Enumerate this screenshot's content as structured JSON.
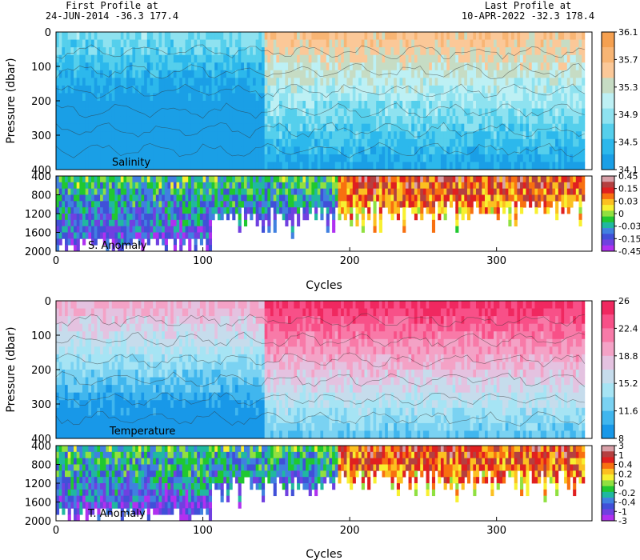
{
  "header": {
    "first_label": "First Profile at",
    "first_info": "24-JUN-2014    -36.3  177.4",
    "last_label": "Last Profile at",
    "last_info": "10-APR-2022    -32.3  178.4"
  },
  "chart_data": [
    {
      "type": "heatmap",
      "title": "",
      "panel_label": "Salinity",
      "xlabel": "",
      "ylabel": "Pressure (dbar)",
      "xlim": [
        0,
        365
      ],
      "ylim": [
        400,
        0
      ],
      "yticks": [
        "0",
        "100",
        "200",
        "300",
        "400"
      ],
      "colorbar": {
        "labels": [
          "36.1",
          "35.7",
          "35.3",
          "34.9",
          "34.5",
          "34.1"
        ],
        "colors": [
          "#f5a050",
          "#f8b574",
          "#fbc898",
          "#c6dcc4",
          "#bdf0f4",
          "#8ee2f0",
          "#55cfec",
          "#2cb8ec",
          "#1a9fe6"
        ]
      },
      "value_range": [
        34.1,
        36.1
      ]
    },
    {
      "type": "heatmap",
      "title": "",
      "panel_label": "S. Anomaly",
      "xlabel": "Cycles",
      "ylabel": "",
      "xlim": [
        0,
        365
      ],
      "ylim": [
        2000,
        400
      ],
      "yticks": [
        "400",
        "800",
        "1200",
        "1600",
        "2000"
      ],
      "xticks": [
        "0",
        "100",
        "200",
        "300"
      ],
      "colorbar": {
        "labels": [
          "0.45",
          "0.15",
          "0.03",
          "0",
          "-0.03",
          "-0.15",
          "-0.45"
        ],
        "colors": [
          "#d8a0a8",
          "#b44040",
          "#e02020",
          "#f87010",
          "#fcc020",
          "#f8f030",
          "#90e040",
          "#20c830",
          "#20b8a0",
          "#4080e0",
          "#4050d8",
          "#7040e0",
          "#b030f0"
        ]
      },
      "value_range": [
        -0.45,
        0.45
      ]
    },
    {
      "type": "heatmap",
      "title": "",
      "panel_label": "Temperature",
      "xlabel": "",
      "ylabel": "Pressure (dbar)",
      "xlim": [
        0,
        365
      ],
      "ylim": [
        400,
        0
      ],
      "yticks": [
        "0",
        "100",
        "200",
        "300",
        "400"
      ],
      "colorbar": {
        "labels": [
          "26",
          "22.4",
          "18.8",
          "15.2",
          "11.6",
          "8"
        ],
        "colors": [
          "#f02860",
          "#f85088",
          "#f87aa8",
          "#f4a2c6",
          "#e4c2e0",
          "#c6dcec",
          "#a6e4f4",
          "#7ad2f2",
          "#40b6ee",
          "#1898e8"
        ]
      },
      "value_range": [
        8,
        26
      ]
    },
    {
      "type": "heatmap",
      "title": "",
      "panel_label": "T. Anomaly",
      "xlabel": "Cycles",
      "ylabel": "",
      "xlim": [
        0,
        365
      ],
      "ylim": [
        2000,
        400
      ],
      "yticks": [
        "400",
        "800",
        "1200",
        "1600",
        "2000"
      ],
      "xticks": [
        "0",
        "100",
        "200",
        "300"
      ],
      "colorbar": {
        "labels": [
          "3",
          "1",
          "0.4",
          "0.2",
          "0",
          "-0.2",
          "-0.4",
          "-1",
          "-3"
        ],
        "colors": [
          "#d8a0a8",
          "#b44040",
          "#e02020",
          "#f87010",
          "#fcc020",
          "#f8f030",
          "#90e040",
          "#20c830",
          "#20b8a0",
          "#4080e0",
          "#4050d8",
          "#7040e0",
          "#b030f0"
        ]
      },
      "value_range": [
        -3,
        3
      ]
    }
  ]
}
